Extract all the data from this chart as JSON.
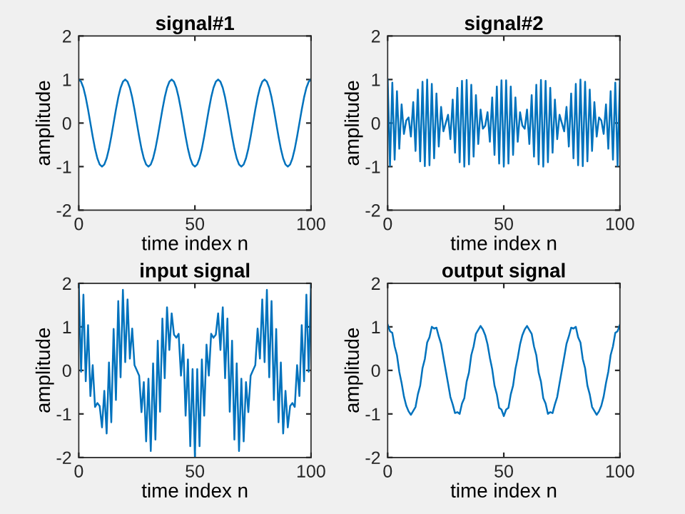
{
  "chart_data": [
    {
      "type": "line",
      "title": "signal#1",
      "xlabel": "time index n",
      "ylabel": "amplitude",
      "xlim": [
        0,
        100
      ],
      "xticks": [
        0,
        50,
        100
      ],
      "ylim": [
        -2,
        2
      ],
      "yticks": [
        -2,
        -1,
        0,
        1,
        2
      ],
      "grid": false,
      "legend": false,
      "x": [
        0,
        1,
        2,
        3,
        4,
        5,
        6,
        7,
        8,
        9,
        10,
        11,
        12,
        13,
        14,
        15,
        16,
        17,
        18,
        19,
        20,
        21,
        22,
        23,
        24,
        25,
        26,
        27,
        28,
        29,
        30,
        31,
        32,
        33,
        34,
        35,
        36,
        37,
        38,
        39,
        40,
        41,
        42,
        43,
        44,
        45,
        46,
        47,
        48,
        49,
        50,
        51,
        52,
        53,
        54,
        55,
        56,
        57,
        58,
        59,
        60,
        61,
        62,
        63,
        64,
        65,
        66,
        67,
        68,
        69,
        70,
        71,
        72,
        73,
        74,
        75,
        76,
        77,
        78,
        79,
        80,
        81,
        82,
        83,
        84,
        85,
        86,
        87,
        88,
        89,
        90,
        91,
        92,
        93,
        94,
        95,
        96,
        97,
        98,
        99,
        100
      ],
      "series": [
        {
          "color": "#0072bd",
          "values": [
            1,
            0.95,
            0.81,
            0.59,
            0.31,
            0,
            -0.31,
            -0.59,
            -0.81,
            -0.95,
            -1,
            -0.95,
            -0.81,
            -0.59,
            -0.31,
            0,
            0.31,
            0.59,
            0.81,
            0.95,
            1,
            0.95,
            0.81,
            0.59,
            0.31,
            0,
            -0.31,
            -0.59,
            -0.81,
            -0.95,
            -1,
            -0.95,
            -0.81,
            -0.59,
            -0.31,
            0,
            0.31,
            0.59,
            0.81,
            0.95,
            1,
            0.95,
            0.81,
            0.59,
            0.31,
            0,
            -0.31,
            -0.59,
            -0.81,
            -0.95,
            -1,
            -0.95,
            -0.81,
            -0.59,
            -0.31,
            0,
            0.31,
            0.59,
            0.81,
            0.95,
            1,
            0.95,
            0.81,
            0.59,
            0.31,
            0,
            -0.31,
            -0.59,
            -0.81,
            -0.95,
            -1,
            -0.95,
            -0.81,
            -0.59,
            -0.31,
            0,
            0.31,
            0.59,
            0.81,
            0.95,
            1,
            0.95,
            0.81,
            0.59,
            0.31,
            0,
            -0.31,
            -0.59,
            -0.81,
            -0.95,
            -1,
            -0.95,
            -0.81,
            -0.59,
            -0.31,
            0,
            0.31,
            0.59,
            0.81,
            0.95,
            1
          ]
        }
      ]
    },
    {
      "type": "line",
      "title": "signal#2",
      "xlabel": "time index n",
      "ylabel": "amplitude",
      "xlim": [
        0,
        100
      ],
      "xticks": [
        0,
        50,
        100
      ],
      "ylim": [
        -2,
        2
      ],
      "yticks": [
        -2,
        -1,
        0,
        1,
        2
      ],
      "grid": false,
      "legend": false,
      "x": [
        0,
        1,
        2,
        3,
        4,
        5,
        6,
        7,
        8,
        9,
        10,
        11,
        12,
        13,
        14,
        15,
        16,
        17,
        18,
        19,
        20,
        21,
        22,
        23,
        24,
        25,
        26,
        27,
        28,
        29,
        30,
        31,
        32,
        33,
        34,
        35,
        36,
        37,
        38,
        39,
        40,
        41,
        42,
        43,
        44,
        45,
        46,
        47,
        48,
        49,
        50,
        51,
        52,
        53,
        54,
        55,
        56,
        57,
        58,
        59,
        60,
        61,
        62,
        63,
        64,
        65,
        66,
        67,
        68,
        69,
        70,
        71,
        72,
        73,
        74,
        75,
        76,
        77,
        78,
        79,
        80,
        81,
        82,
        83,
        84,
        85,
        86,
        87,
        88,
        89,
        90,
        91,
        92,
        93,
        94,
        95,
        96,
        97,
        98,
        99,
        100
      ],
      "series": [
        {
          "color": "#0072bd",
          "values": [
            1.0,
            -0.98,
            0.93,
            -0.84,
            0.73,
            -0.59,
            0.43,
            -0.25,
            0.06,
            0.13,
            -0.31,
            0.48,
            -0.64,
            0.77,
            -0.88,
            0.95,
            -0.99,
            1.0,
            -0.97,
            0.9,
            -0.81,
            0.68,
            -0.54,
            0.37,
            -0.19,
            0,
            0.19,
            -0.37,
            0.54,
            -0.68,
            0.81,
            -0.9,
            0.97,
            -1.0,
            0.99,
            -0.95,
            0.88,
            -0.77,
            0.64,
            -0.48,
            0.31,
            -0.13,
            -0.06,
            0.25,
            -0.43,
            0.59,
            -0.73,
            0.84,
            -0.93,
            0.98,
            -1.0,
            0.98,
            -0.93,
            0.84,
            -0.73,
            0.59,
            -0.43,
            0.25,
            -0.06,
            -0.13,
            0.31,
            -0.48,
            0.64,
            -0.77,
            0.88,
            -0.95,
            0.99,
            -1.0,
            0.97,
            -0.9,
            0.81,
            -0.68,
            0.54,
            -0.37,
            0.19,
            0,
            -0.19,
            0.37,
            -0.54,
            0.68,
            -0.81,
            0.9,
            -0.97,
            1.0,
            -0.99,
            0.95,
            -0.88,
            0.77,
            -0.64,
            0.48,
            -0.31,
            0.13,
            0.06,
            -0.25,
            0.43,
            -0.59,
            0.73,
            -0.84,
            0.93,
            -0.98,
            1.0
          ]
        }
      ]
    },
    {
      "type": "line",
      "title": "input signal",
      "xlabel": "time index n",
      "ylabel": "amplitude",
      "xlim": [
        0,
        100
      ],
      "xticks": [
        0,
        50,
        100
      ],
      "ylim": [
        -2,
        2
      ],
      "yticks": [
        -2,
        -1,
        0,
        1,
        2
      ],
      "grid": false,
      "legend": false,
      "x": [
        0,
        1,
        2,
        3,
        4,
        5,
        6,
        7,
        8,
        9,
        10,
        11,
        12,
        13,
        14,
        15,
        16,
        17,
        18,
        19,
        20,
        21,
        22,
        23,
        24,
        25,
        26,
        27,
        28,
        29,
        30,
        31,
        32,
        33,
        34,
        35,
        36,
        37,
        38,
        39,
        40,
        41,
        42,
        43,
        44,
        45,
        46,
        47,
        48,
        49,
        50,
        51,
        52,
        53,
        54,
        55,
        56,
        57,
        58,
        59,
        60,
        61,
        62,
        63,
        64,
        65,
        66,
        67,
        68,
        69,
        70,
        71,
        72,
        73,
        74,
        75,
        76,
        77,
        78,
        79,
        80,
        81,
        82,
        83,
        84,
        85,
        86,
        87,
        88,
        89,
        90,
        91,
        92,
        93,
        94,
        95,
        96,
        97,
        98,
        99,
        100
      ],
      "series": [
        {
          "color": "#0072bd",
          "values": [
            2.0,
            -0.03,
            1.74,
            -0.25,
            1.04,
            -0.59,
            0.12,
            -0.84,
            -0.75,
            -0.82,
            -1.31,
            -0.47,
            -1.45,
            0.18,
            -1.19,
            0.95,
            -0.68,
            1.59,
            -0.16,
            1.85,
            0.19,
            1.63,
            0.27,
            0.96,
            0.12,
            0,
            -0.12,
            -0.96,
            -0.27,
            -1.63,
            -0.19,
            -1.85,
            0.16,
            -1.59,
            0.68,
            -0.95,
            1.19,
            -0.18,
            1.45,
            0.47,
            1.31,
            0.82,
            0.75,
            0.84,
            -0.12,
            0.59,
            -1.04,
            0.25,
            -1.74,
            0.03,
            -2.0,
            0.03,
            -1.74,
            0.25,
            -1.04,
            0.59,
            -0.12,
            0.84,
            0.75,
            0.82,
            1.31,
            0.47,
            1.45,
            -0.18,
            1.19,
            -0.95,
            0.68,
            -1.59,
            0.16,
            -1.85,
            -0.19,
            -1.63,
            -0.27,
            -0.96,
            -0.12,
            0,
            0.12,
            0.96,
            0.27,
            1.63,
            0.19,
            1.85,
            -0.16,
            1.59,
            -0.68,
            0.95,
            -1.19,
            0.18,
            -1.45,
            -0.47,
            -1.31,
            -0.82,
            -0.75,
            -0.84,
            0.12,
            -0.59,
            1.04,
            -0.25,
            1.74,
            -0.03,
            2.0
          ]
        }
      ]
    },
    {
      "type": "line",
      "title": "output signal",
      "xlabel": "time index n",
      "ylabel": "amplitude",
      "xlim": [
        0,
        100
      ],
      "xticks": [
        0,
        50,
        100
      ],
      "ylim": [
        -2,
        2
      ],
      "yticks": [
        -2,
        -1,
        0,
        1,
        2
      ],
      "grid": false,
      "legend": false,
      "x": [
        0,
        1,
        2,
        3,
        4,
        5,
        6,
        7,
        8,
        9,
        10,
        11,
        12,
        13,
        14,
        15,
        16,
        17,
        18,
        19,
        20,
        21,
        22,
        23,
        24,
        25,
        26,
        27,
        28,
        29,
        30,
        31,
        32,
        33,
        34,
        35,
        36,
        37,
        38,
        39,
        40,
        41,
        42,
        43,
        44,
        45,
        46,
        47,
        48,
        49,
        50,
        51,
        52,
        53,
        54,
        55,
        56,
        57,
        58,
        59,
        60,
        61,
        62,
        63,
        64,
        65,
        66,
        67,
        68,
        69,
        70,
        71,
        72,
        73,
        74,
        75,
        76,
        77,
        78,
        79,
        80,
        81,
        82,
        83,
        84,
        85,
        86,
        87,
        88,
        89,
        90,
        91,
        92,
        93,
        94,
        95,
        96,
        97,
        98,
        99,
        100
      ],
      "series": [
        {
          "color": "#0072bd",
          "values": [
            1.05,
            0.9,
            0.86,
            0.55,
            0.35,
            -0.03,
            -0.29,
            -0.6,
            -0.81,
            -0.94,
            -1.02,
            -0.93,
            -0.84,
            -0.55,
            -0.35,
            0.05,
            0.26,
            0.64,
            0.76,
            1.0,
            0.96,
            0.98,
            0.78,
            0.61,
            0.3,
            0,
            -0.3,
            -0.61,
            -0.78,
            -0.98,
            -0.96,
            -1.0,
            -0.76,
            -0.64,
            -0.26,
            -0.05,
            0.35,
            0.55,
            0.84,
            0.93,
            1.02,
            0.94,
            0.81,
            0.6,
            0.29,
            0.03,
            -0.35,
            -0.55,
            -0.86,
            -0.9,
            -1.05,
            -0.9,
            -0.86,
            -0.55,
            -0.35,
            0.03,
            0.29,
            0.6,
            0.81,
            0.94,
            1.02,
            0.93,
            0.84,
            0.55,
            0.35,
            -0.05,
            -0.26,
            -0.64,
            -0.76,
            -1.0,
            -0.96,
            -0.98,
            -0.78,
            -0.61,
            -0.3,
            0,
            0.3,
            0.61,
            0.78,
            0.98,
            0.96,
            1.0,
            0.76,
            0.64,
            0.26,
            0.05,
            -0.35,
            -0.55,
            -0.84,
            -0.93,
            -1.02,
            -0.94,
            -0.81,
            -0.6,
            -0.29,
            -0.03,
            0.35,
            0.55,
            0.86,
            0.9,
            1.05
          ]
        }
      ]
    }
  ]
}
